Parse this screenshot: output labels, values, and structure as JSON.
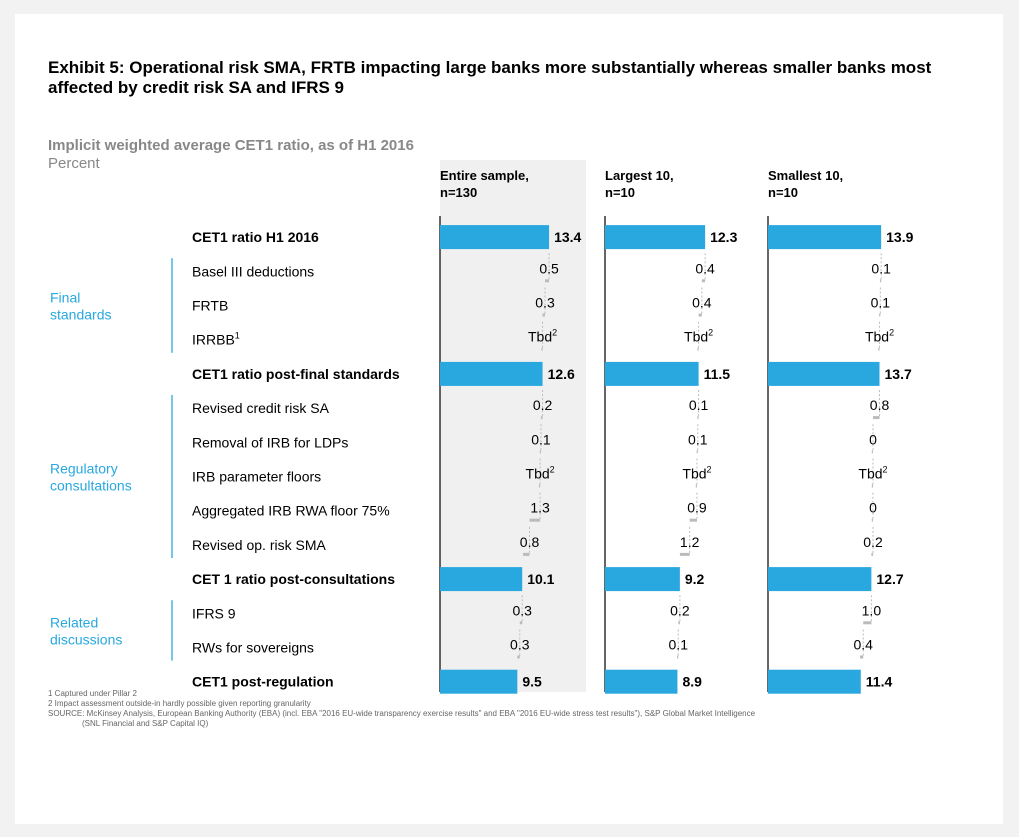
{
  "title": "Exhibit 5: Operational risk SMA, FRTB impacting large banks more substantially whereas smaller banks most affected by credit risk SA and IFRS 9",
  "subtitle": "Implicit weighted average CET1 ratio, as of H1 2016",
  "unit_label": "Percent",
  "colors": {
    "bar": "#29a8e0",
    "connector": "#bbbbbb",
    "group": "#29a8e0",
    "panel_bg": "#f0f0f0"
  },
  "chart_data": {
    "type": "bar",
    "orientation": "horizontal-waterfall",
    "columns": [
      {
        "line1": "Entire sample,",
        "line2": "n=130"
      },
      {
        "line1": "Largest 10,",
        "line2": "n=10"
      },
      {
        "line1": "Smallest 10,",
        "line2": "n=10"
      }
    ],
    "groups": [
      {
        "line1": "Final",
        "line2": "standards",
        "rows": [
          1,
          3
        ]
      },
      {
        "line1": "Regulatory",
        "line2": "consultations",
        "rows": [
          5,
          9
        ]
      },
      {
        "line1": "Related",
        "line2": "discussions",
        "rows": [
          11,
          12
        ]
      }
    ],
    "rows": [
      {
        "label": "CET1 ratio H1 2016",
        "kind": "total",
        "values": [
          13.4,
          12.3,
          13.9
        ],
        "labels": [
          "13.4",
          "12.3",
          "13.9"
        ]
      },
      {
        "label": "Basel III deductions",
        "kind": "delta",
        "values": [
          0.5,
          0.4,
          0.1
        ],
        "labels": [
          "0.5",
          "0.4",
          "0.1"
        ]
      },
      {
        "label": "FRTB",
        "kind": "delta",
        "values": [
          0.3,
          0.4,
          0.1
        ],
        "labels": [
          "0.3",
          "0.4",
          "0.1"
        ]
      },
      {
        "label": "IRRBB",
        "label_sup": "1",
        "kind": "delta",
        "values": [
          0,
          0,
          0
        ],
        "labels": [
          "Tbd",
          "Tbd",
          "Tbd"
        ],
        "labels_sup": "2"
      },
      {
        "label": "CET1 ratio post-final standards",
        "kind": "total",
        "values": [
          12.6,
          11.5,
          13.7
        ],
        "labels": [
          "12.6",
          "11.5",
          "13.7"
        ]
      },
      {
        "label": "Revised credit risk SA",
        "kind": "delta",
        "values": [
          0.2,
          0.1,
          0.8
        ],
        "labels": [
          "0.2",
          "0.1",
          "0.8"
        ]
      },
      {
        "label": "Removal of IRB for LDPs",
        "kind": "delta",
        "values": [
          0.1,
          0.1,
          0
        ],
        "labels": [
          "0.1",
          "0.1",
          "0"
        ]
      },
      {
        "label": "IRB parameter floors",
        "kind": "delta",
        "values": [
          0,
          0,
          0
        ],
        "labels": [
          "Tbd",
          "Tbd",
          "Tbd"
        ],
        "labels_sup": "2"
      },
      {
        "label": "Aggregated IRB RWA floor 75%",
        "kind": "delta",
        "values": [
          1.3,
          0.9,
          0
        ],
        "labels": [
          "1.3",
          "0.9",
          "0"
        ]
      },
      {
        "label": "Revised op. risk SMA",
        "kind": "delta",
        "values": [
          0.8,
          1.2,
          0.2
        ],
        "labels": [
          "0.8",
          "1.2",
          "0.2"
        ]
      },
      {
        "label": "CET 1 ratio post-consultations",
        "kind": "total",
        "values": [
          10.1,
          9.2,
          12.7
        ],
        "labels": [
          "10.1",
          "9.2",
          "12.7"
        ]
      },
      {
        "label": "IFRS 9",
        "kind": "delta",
        "values": [
          0.3,
          0.2,
          1.0
        ],
        "labels": [
          "0.3",
          "0.2",
          "1.0"
        ]
      },
      {
        "label": "RWs for sovereigns",
        "kind": "delta",
        "values": [
          0.3,
          0.1,
          0.4
        ],
        "labels": [
          "0.3",
          "0.1",
          "0.4"
        ]
      },
      {
        "label": "CET1 post-regulation",
        "kind": "total",
        "values": [
          9.5,
          8.9,
          11.4
        ],
        "labels": [
          "9.5",
          "8.9",
          "11.4"
        ]
      }
    ]
  },
  "footnotes": [
    "1 Captured under Pillar 2",
    "2 Impact assessment outside-in hardly possible given reporting granularity",
    "SOURCE: McKinsey Analysis, European Banking Authority (EBA) (incl. EBA \"2016 EU-wide transparency exercise results\" and EBA \"2016 EU-wide stress test results\"), S&P Global Market Intelligence",
    "(SNL Financial and S&P Capital IQ)"
  ]
}
